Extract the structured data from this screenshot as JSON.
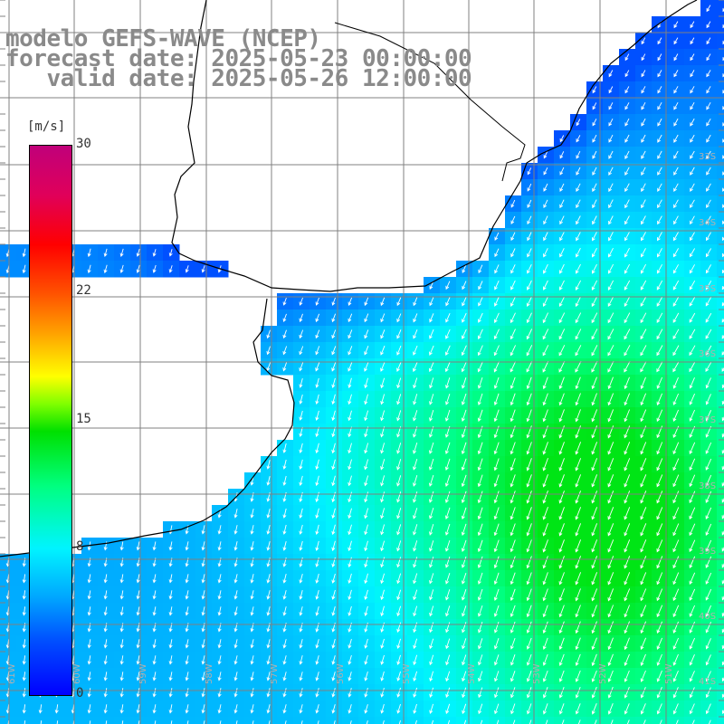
{
  "title": {
    "line1": "modelo GEFS-WAVE (NCEP)",
    "line2": "forecast date: 2025-05-23 00:00:00",
    "line3": "   valid date: 2025-05-26 12:00:00"
  },
  "colorbar": {
    "unit": "[m/s]",
    "ticks": [
      "30",
      "22",
      "15",
      "8",
      "0"
    ],
    "tick_values": [
      30,
      22,
      15,
      8,
      0
    ],
    "range": [
      0,
      30
    ]
  },
  "map": {
    "lon_labels": [
      "61W",
      "60W",
      "59W",
      "58W",
      "57W",
      "56W",
      "55W",
      "54W",
      "53W",
      "52W",
      "51W"
    ],
    "lat_labels": [
      "33S",
      "34S",
      "35S",
      "36S",
      "37S",
      "38S",
      "39S",
      "40S",
      "41S"
    ],
    "colors": {
      "land": "#ffffff",
      "coast": "#000000",
      "grid": "#808080",
      "arrow": "#ffffff",
      "label": "#b0b0b0"
    }
  }
}
